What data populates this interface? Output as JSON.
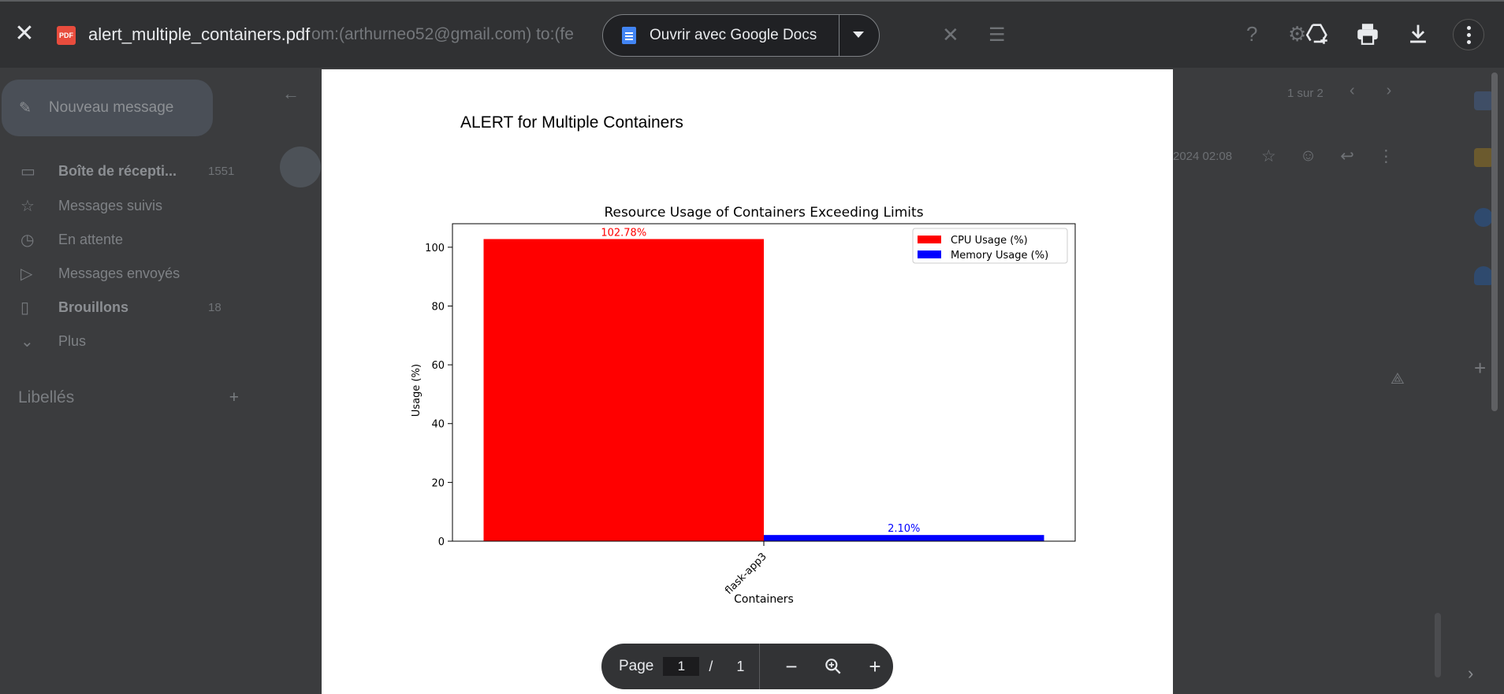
{
  "viewer": {
    "file_name": "alert_multiple_containers.pdf",
    "file_badge": "PDF",
    "open_with_label": "Ouvrir avec Google Docs",
    "page_label": "Page",
    "current_page": "1",
    "page_separator": "/",
    "total_pages": "1"
  },
  "background": {
    "subject_fragment": "om:(arthurneo52@gmail.com) to:(fe",
    "compose_label": "Nouveau message",
    "nav": [
      {
        "label": "Boîte de récepti...",
        "count": "1551"
      },
      {
        "label": "Messages suivis",
        "count": ""
      },
      {
        "label": "En attente",
        "count": ""
      },
      {
        "label": "Messages envoyés",
        "count": ""
      },
      {
        "label": "Brouillons",
        "count": "18"
      },
      {
        "label": "Plus",
        "count": ""
      }
    ],
    "labels_heading": "Libellés",
    "pager": "1 sur 2",
    "date_fragment": "2024 02:08"
  },
  "document": {
    "title": "ALERT for Multiple Containers"
  },
  "chart_data": {
    "type": "bar",
    "title": "Resource Usage of Containers Exceeding Limits",
    "xlabel": "Containers",
    "ylabel": "Usage (%)",
    "categories": [
      "flask-app3"
    ],
    "series": [
      {
        "name": "CPU Usage (%)",
        "values": [
          102.78
        ],
        "labels": [
          "102.78%"
        ],
        "color": "#ff0000"
      },
      {
        "name": "Memory Usage (%)",
        "values": [
          2.1
        ],
        "labels": [
          "2.10%"
        ],
        "color": "#0000ff"
      }
    ],
    "yticks": [
      0,
      20,
      40,
      60,
      80,
      100
    ],
    "ylim": [
      0,
      108
    ],
    "legend": "top-right",
    "grid": false
  },
  "colors": {
    "cpu": "#ff0000",
    "memory": "#0000ff",
    "pdf_badge": "#e84c3d",
    "docs_blue": "#4285f4"
  }
}
